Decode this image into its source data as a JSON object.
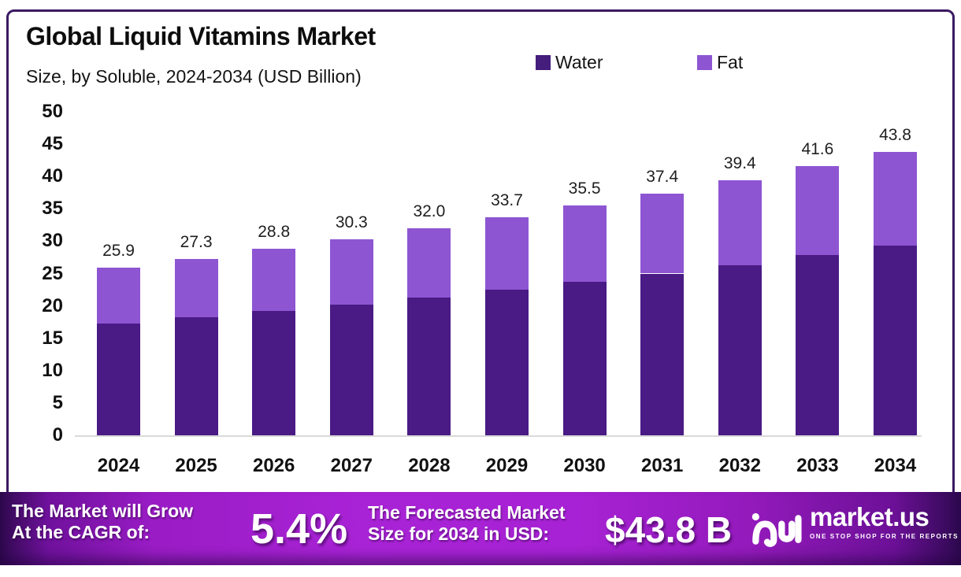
{
  "header": {
    "title": "Global Liquid Vitamins Market",
    "subtitle": "Size, by Soluble, 2024-2034 (USD Billion)"
  },
  "legend": {
    "water_label": "Water",
    "fat_label": "Fat"
  },
  "colors": {
    "water": "#4a1a85",
    "fat": "#8e55d2",
    "legend_water": "#441d7d",
    "legend_fat": "#8e55d2",
    "card_border": "#3b1a63",
    "axis_line": "#d9d9d9",
    "banner_mid": "#a722d4"
  },
  "chart_data": {
    "type": "bar",
    "stacked": true,
    "title": "Global Liquid Vitamins Market Size, by Soluble, 2024-2034 (USD Billion)",
    "xlabel": "",
    "ylabel": "USD Billion",
    "ylim": [
      0,
      50
    ],
    "y_ticks": [
      0,
      5,
      10,
      15,
      20,
      25,
      30,
      35,
      40,
      45,
      50
    ],
    "grid": false,
    "legend_position": "top-right",
    "categories": [
      "2024",
      "2025",
      "2026",
      "2027",
      "2028",
      "2029",
      "2030",
      "2031",
      "2032",
      "2033",
      "2034"
    ],
    "series": [
      {
        "name": "Water",
        "values": [
          17.3,
          18.2,
          19.2,
          20.2,
          21.3,
          22.5,
          23.7,
          25.0,
          26.3,
          27.8,
          29.3
        ]
      },
      {
        "name": "Fat",
        "values": [
          8.6,
          9.1,
          9.6,
          10.1,
          10.7,
          11.2,
          11.8,
          12.4,
          13.1,
          13.8,
          14.5
        ]
      }
    ],
    "totals": [
      25.9,
      27.3,
      28.8,
      30.3,
      32.0,
      33.7,
      35.5,
      37.4,
      39.4,
      41.6,
      43.8
    ],
    "totals_labels": [
      "25.9",
      "27.3",
      "28.8",
      "30.3",
      "32.0",
      "33.7",
      "35.5",
      "37.4",
      "39.4",
      "41.6",
      "43.8"
    ]
  },
  "banner": {
    "left_line1": "The Market will Grow",
    "left_line2": "At the CAGR of:",
    "cagr": "5.4%",
    "mid_line1": "The Forecasted Market",
    "mid_line2": "Size for 2034 in USD:",
    "forecast_value": "$43.8 B",
    "brand_name": "market.us",
    "brand_tagline": "ONE STOP SHOP FOR THE REPORTS"
  }
}
